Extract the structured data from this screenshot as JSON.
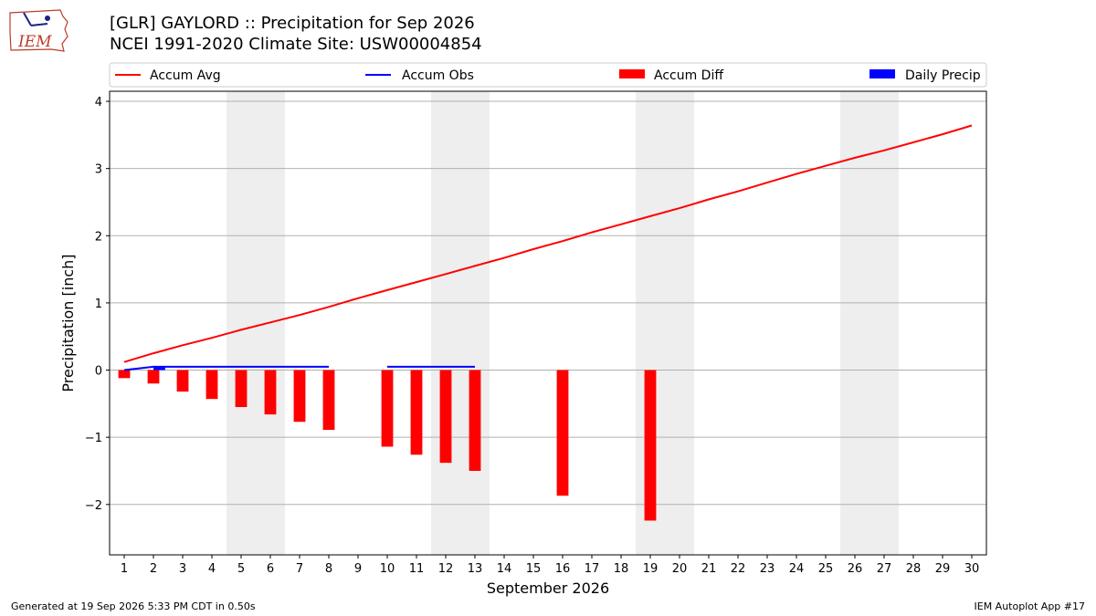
{
  "header": {
    "title_line1": "[GLR] GAYLORD :: Precipitation for Sep 2026",
    "title_line2": "NCEI 1991-2020 Climate Site: USW00004854",
    "logo_text": "IEM"
  },
  "footer": {
    "generated": "Generated at 19 Sep 2026 5:33 PM CDT in 0.50s",
    "app": "IEM Autoplot App #17"
  },
  "chart_data": {
    "type": "line",
    "title": "[GLR] GAYLORD :: Precipitation for Sep 2026",
    "subtitle": "NCEI 1991-2020 Climate Site: USW00004854",
    "xlabel": "September 2026",
    "ylabel": "Precipitation [inch]",
    "x": [
      1,
      2,
      3,
      4,
      5,
      6,
      7,
      8,
      9,
      10,
      11,
      12,
      13,
      14,
      15,
      16,
      17,
      18,
      19,
      20,
      21,
      22,
      23,
      24,
      25,
      26,
      27,
      28,
      29,
      30
    ],
    "xlim": [
      0.5,
      30.5
    ],
    "ylim": [
      -2.75,
      4.15
    ],
    "yticks": [
      -2,
      -1,
      0,
      1,
      2,
      3,
      4
    ],
    "ytick_labels": [
      "−2",
      "−1",
      "0",
      "1",
      "2",
      "3",
      "4"
    ],
    "grid": "horizontal",
    "legend_position": "top",
    "weekend_shading": [
      [
        4.5,
        6.5
      ],
      [
        11.5,
        13.5
      ],
      [
        18.5,
        20.5
      ],
      [
        25.5,
        27.5
      ]
    ],
    "colors": {
      "avg": "#ff0000",
      "obs": "#0000ff",
      "diff": "#ff0000",
      "daily": "#0000ff",
      "shade": "#eeeeee"
    },
    "series": [
      {
        "name": "Accum Avg",
        "kind": "line",
        "x": [
          1,
          2,
          3,
          4,
          5,
          6,
          7,
          8,
          9,
          10,
          11,
          12,
          13,
          14,
          15,
          16,
          17,
          18,
          19,
          20,
          21,
          22,
          23,
          24,
          25,
          26,
          27,
          28,
          29,
          30
        ],
        "values": [
          0.12,
          0.25,
          0.37,
          0.48,
          0.6,
          0.71,
          0.82,
          0.94,
          1.07,
          1.19,
          1.31,
          1.43,
          1.55,
          1.67,
          1.8,
          1.92,
          2.05,
          2.17,
          2.29,
          2.41,
          2.54,
          2.66,
          2.79,
          2.92,
          3.04,
          3.16,
          3.27,
          3.39,
          3.51,
          3.64
        ]
      },
      {
        "name": "Accum Obs",
        "kind": "line",
        "x": [
          1,
          2,
          3,
          4,
          5,
          6,
          7,
          8,
          9,
          10,
          11,
          12,
          13,
          14,
          15,
          16,
          17,
          18,
          19
        ],
        "values": [
          0.0,
          0.05,
          0.05,
          0.05,
          0.05,
          0.05,
          0.05,
          0.05,
          null,
          0.05,
          0.05,
          0.05,
          0.05,
          null,
          null,
          null,
          null,
          null,
          null
        ]
      },
      {
        "name": "Accum Diff",
        "kind": "bar",
        "x": [
          1,
          2,
          3,
          4,
          5,
          6,
          7,
          8,
          10,
          11,
          12,
          13,
          16,
          19
        ],
        "values": [
          -0.12,
          -0.2,
          -0.32,
          -0.43,
          -0.55,
          -0.66,
          -0.77,
          -0.89,
          -1.14,
          -1.26,
          -1.38,
          -1.5,
          -1.87,
          -2.24
        ]
      },
      {
        "name": "Daily Precip",
        "kind": "bar",
        "x": [
          2
        ],
        "values": [
          0.04
        ]
      }
    ]
  }
}
